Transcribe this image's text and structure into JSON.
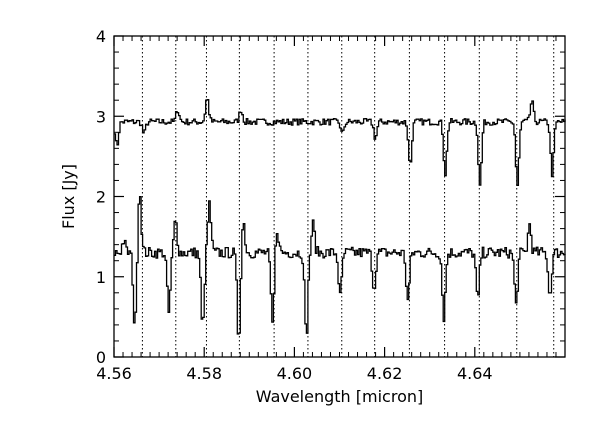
{
  "chart_data": {
    "type": "line",
    "title": "",
    "xlabel": "Wavelength [micron]",
    "ylabel": "Flux [Jy]",
    "xlim": [
      4.56,
      4.66
    ],
    "ylim": [
      0,
      4
    ],
    "x_ticks": [
      4.56,
      4.58,
      4.6,
      4.62,
      4.64
    ],
    "x_tick_labels": [
      "4.56",
      "4.58",
      "4.60",
      "4.62",
      "4.64"
    ],
    "y_ticks": [
      0,
      1,
      2,
      3,
      4
    ],
    "y_tick_labels": [
      "0",
      "1",
      "2",
      "3",
      "4"
    ],
    "grid": false,
    "reference_lines_x": [
      4.5663,
      4.5737,
      4.5805,
      4.5878,
      4.5955,
      4.603,
      4.6105,
      4.6178,
      4.6255,
      4.6333,
      4.641,
      4.6493,
      4.6575
    ],
    "series": [
      {
        "name": "",
        "baseline": 2.93,
        "noise": 0.04,
        "features": [
          {
            "x": 4.5605,
            "depth": -0.3
          },
          {
            "x": 4.5665,
            "depth": -0.15
          },
          {
            "x": 4.574,
            "depth": 0.15
          },
          {
            "x": 4.5805,
            "depth": 0.3
          },
          {
            "x": 4.588,
            "depth": 0.15
          },
          {
            "x": 4.6105,
            "depth": -0.15
          },
          {
            "x": 4.6178,
            "depth": -0.2
          },
          {
            "x": 4.6255,
            "depth": -0.55
          },
          {
            "x": 4.6333,
            "depth": -0.65
          },
          {
            "x": 4.641,
            "depth": -0.8
          },
          {
            "x": 4.6493,
            "depth": -0.8
          },
          {
            "x": 4.6525,
            "depth": 0.25
          },
          {
            "x": 4.657,
            "depth": -0.65
          }
        ]
      },
      {
        "name": "",
        "baseline": 1.3,
        "noise": 0.07,
        "features": [
          {
            "x": 4.562,
            "depth": 0.15
          },
          {
            "x": 4.5645,
            "depth": -0.95
          },
          {
            "x": 4.5655,
            "depth": 0.8
          },
          {
            "x": 4.572,
            "depth": -0.75
          },
          {
            "x": 4.5735,
            "depth": 0.4
          },
          {
            "x": 4.5795,
            "depth": -0.95
          },
          {
            "x": 4.581,
            "depth": 0.6
          },
          {
            "x": 4.5875,
            "depth": -1.1
          },
          {
            "x": 4.5885,
            "depth": 0.4
          },
          {
            "x": 4.595,
            "depth": -0.9
          },
          {
            "x": 4.596,
            "depth": 0.3
          },
          {
            "x": 4.6025,
            "depth": -1.05
          },
          {
            "x": 4.604,
            "depth": 0.35
          },
          {
            "x": 4.61,
            "depth": -0.55
          },
          {
            "x": 4.6175,
            "depth": -0.45
          },
          {
            "x": 4.625,
            "depth": -0.6
          },
          {
            "x": 4.633,
            "depth": -0.8
          },
          {
            "x": 4.6405,
            "depth": -0.6
          },
          {
            "x": 4.649,
            "depth": -0.65
          },
          {
            "x": 4.652,
            "depth": 0.35
          },
          {
            "x": 4.6565,
            "depth": -0.55
          }
        ]
      }
    ]
  }
}
